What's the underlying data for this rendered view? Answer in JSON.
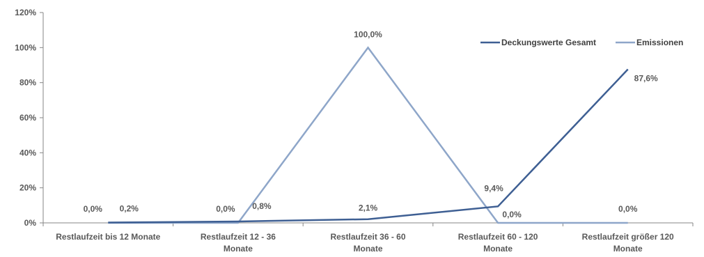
{
  "chart_data": {
    "type": "line",
    "categories": [
      [
        "Restlaufzeit bis 12 Monate"
      ],
      [
        "Restlaufzeit 12 - 36",
        "Monate"
      ],
      [
        "Restlaufzeit 36 - 60",
        "Monate"
      ],
      [
        "Restlaufzeit 60 - 120",
        "Monate"
      ],
      [
        "Restlaufzeit größer 120",
        "Monate"
      ]
    ],
    "ylim": [
      0,
      120
    ],
    "yticks": [
      0,
      20,
      40,
      60,
      80,
      100,
      120
    ],
    "ytick_labels": [
      "0%",
      "20%",
      "40%",
      "60%",
      "80%",
      "100%",
      "120%"
    ],
    "legend_position": "top-right",
    "series": [
      {
        "name": "Deckungswerte Gesamt",
        "color": "#3E5F93",
        "values": [
          0.2,
          0.8,
          2.1,
          9.4,
          87.6
        ],
        "labels": [
          "0,2%",
          "0,8%",
          "2,1%",
          "9,4%",
          "87,6%"
        ]
      },
      {
        "name": "Emissionen",
        "color": "#8EA6C9",
        "values": [
          0.0,
          0.0,
          100.0,
          0.0,
          0.0
        ],
        "labels": [
          "0,0%",
          "0,0%",
          "100,0%",
          "0,0%",
          "0,0%"
        ]
      }
    ]
  }
}
